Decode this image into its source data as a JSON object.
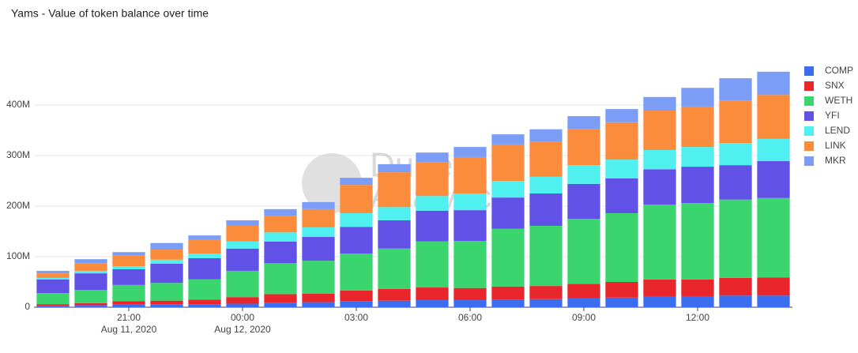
{
  "chart_data": {
    "type": "stacked_bar",
    "title": "Yams - Value of token balance over time",
    "watermark": [
      "Dune",
      "Analytics"
    ],
    "x": [
      "2020-08-11 19:00",
      "2020-08-11 20:00",
      "2020-08-11 21:00",
      "2020-08-11 22:00",
      "2020-08-11 23:00",
      "2020-08-12 00:00",
      "2020-08-12 01:00",
      "2020-08-12 02:00",
      "2020-08-12 03:00",
      "2020-08-12 04:00",
      "2020-08-12 05:00",
      "2020-08-12 06:00",
      "2020-08-12 07:00",
      "2020-08-12 08:00",
      "2020-08-12 09:00",
      "2020-08-12 10:00",
      "2020-08-12 11:00",
      "2020-08-12 12:00",
      "2020-08-12 13:00",
      "2020-08-12 14:00"
    ],
    "xticks": [
      {
        "value": "2020-08-11 21:00",
        "label": "21:00",
        "date": "Aug 11, 2020"
      },
      {
        "value": "2020-08-12 00:00",
        "label": "00:00",
        "date": "Aug 12, 2020"
      },
      {
        "value": "2020-08-12 03:00",
        "label": "03:00"
      },
      {
        "value": "2020-08-12 06:00",
        "label": "06:00"
      },
      {
        "value": "2020-08-12 09:00",
        "label": "09:00"
      },
      {
        "value": "2020-08-12 12:00",
        "label": "12:00"
      }
    ],
    "ylim": [
      0,
      500000000
    ],
    "yticks": [
      0,
      {
        "value": 100000000,
        "label": "100M"
      },
      {
        "value": 200000000,
        "label": "200M"
      },
      {
        "value": 300000000,
        "label": "300M"
      },
      {
        "value": 400000000,
        "label": "400M"
      }
    ],
    "grid": true,
    "legend": "right",
    "series": [
      {
        "name": "COMP",
        "color": "#3b6df0",
        "values": [
          3000000,
          4000000,
          5000000,
          6000000,
          6000000,
          7000000,
          9000000,
          10000000,
          12000000,
          13000000,
          14000000,
          14000000,
          15000000,
          16000000,
          18000000,
          19000000,
          21000000,
          21000000,
          23000000,
          23000000
        ]
      },
      {
        "name": "SNX",
        "color": "#e8262c",
        "values": [
          3000000,
          4000000,
          7000000,
          7000000,
          9000000,
          13000000,
          17000000,
          17000000,
          21000000,
          23000000,
          25000000,
          24000000,
          26000000,
          26000000,
          28000000,
          31000000,
          34000000,
          34000000,
          35000000,
          36000000
        ]
      },
      {
        "name": "WETH",
        "color": "#3ad56f",
        "values": [
          22000000,
          26000000,
          32000000,
          35000000,
          40000000,
          52000000,
          61000000,
          65000000,
          73000000,
          80000000,
          91000000,
          93000000,
          114000000,
          119000000,
          129000000,
          136000000,
          148000000,
          151000000,
          155000000,
          157000000
        ]
      },
      {
        "name": "YFI",
        "color": "#6251e6",
        "values": [
          27000000,
          33000000,
          31000000,
          38000000,
          42000000,
          44000000,
          43000000,
          47000000,
          53000000,
          56000000,
          61000000,
          61000000,
          62000000,
          64000000,
          69000000,
          69000000,
          70000000,
          72000000,
          68000000,
          73000000
        ]
      },
      {
        "name": "LEND",
        "color": "#4ff0ef",
        "values": [
          3000000,
          5000000,
          6000000,
          8000000,
          9000000,
          14000000,
          18000000,
          19000000,
          27000000,
          26000000,
          29000000,
          33000000,
          33000000,
          33000000,
          37000000,
          37000000,
          38000000,
          39000000,
          44000000,
          44000000
        ]
      },
      {
        "name": "LINK",
        "color": "#fb8c3c",
        "values": [
          9000000,
          15000000,
          21000000,
          20000000,
          27000000,
          31000000,
          33000000,
          36000000,
          56000000,
          69000000,
          67000000,
          72000000,
          72000000,
          70000000,
          72000000,
          74000000,
          78000000,
          80000000,
          84000000,
          87000000
        ]
      },
      {
        "name": "MKR",
        "color": "#7b9df6",
        "values": [
          5000000,
          8000000,
          7000000,
          13000000,
          9000000,
          11000000,
          13000000,
          14000000,
          14000000,
          16000000,
          19000000,
          20000000,
          20000000,
          24000000,
          25000000,
          26000000,
          27000000,
          37000000,
          44000000,
          46000000
        ]
      }
    ]
  }
}
